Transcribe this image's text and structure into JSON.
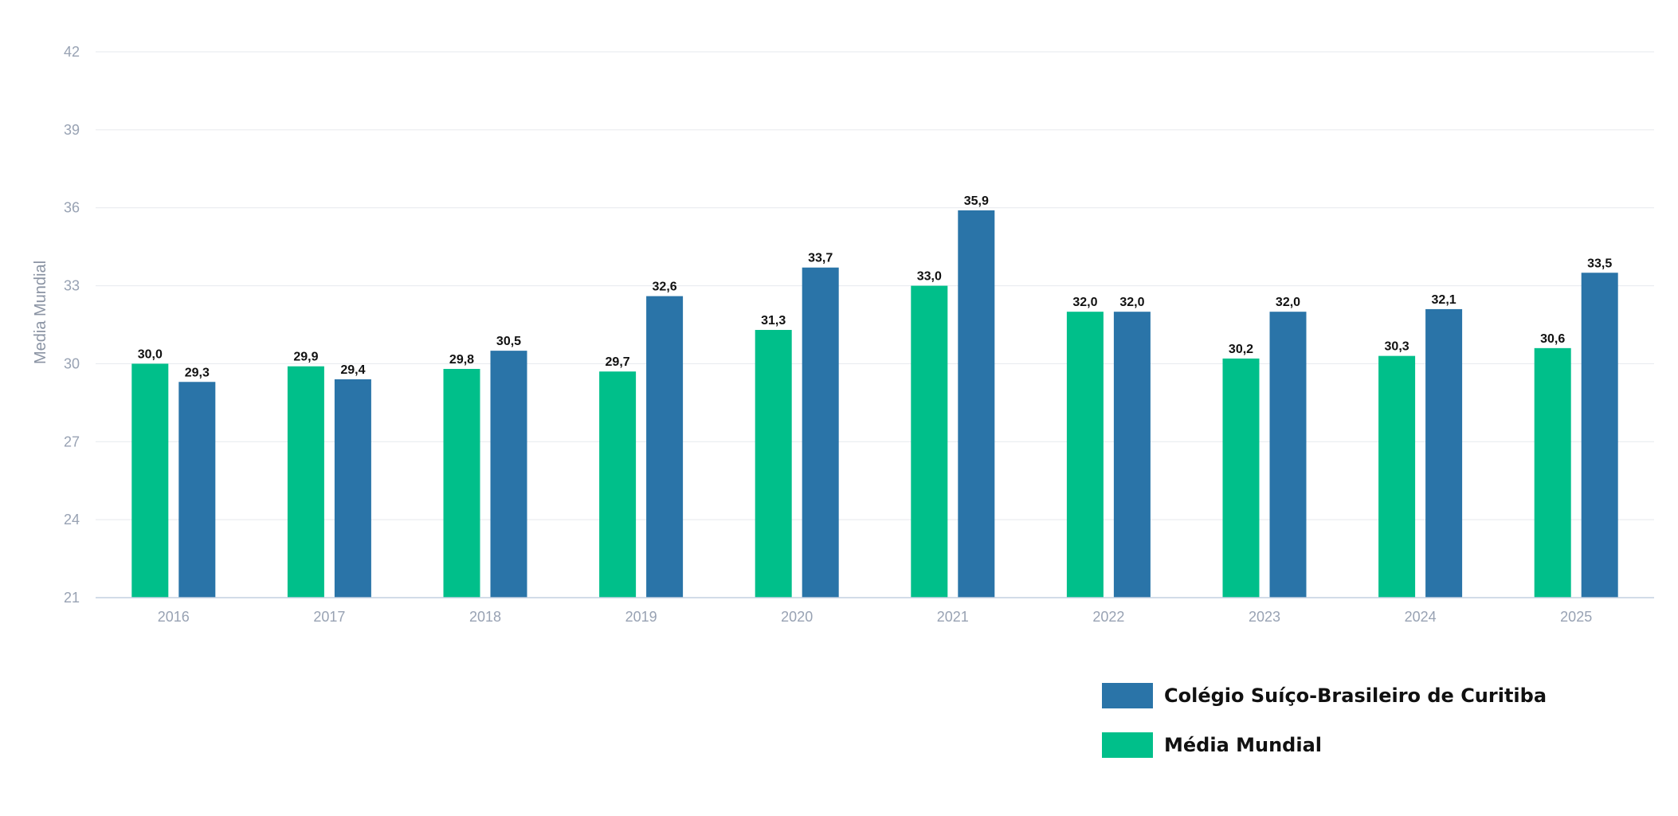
{
  "chart_data": {
    "type": "bar",
    "title": "",
    "xlabel": "",
    "ylabel": "Media Mundial",
    "ylim": [
      21,
      42
    ],
    "yticks": [
      "21",
      "24",
      "27",
      "30",
      "33",
      "36",
      "39",
      "42"
    ],
    "grid": true,
    "legend_position": "bottom-right",
    "categories": [
      "2016",
      "2017",
      "2018",
      "2019",
      "2020",
      "2021",
      "2022",
      "2023",
      "2024",
      "2025"
    ],
    "series": [
      {
        "name": "Média Mundial",
        "color": "#00bf8a",
        "values": [
          30.0,
          29.9,
          29.8,
          29.7,
          31.3,
          33.0,
          32.0,
          30.2,
          30.3,
          30.6
        ],
        "labels": [
          "30,0",
          "29,9",
          "29,8",
          "29,7",
          "31,3",
          "33,0",
          "32,0",
          "30,2",
          "30,3",
          "30,6"
        ]
      },
      {
        "name": "Colégio Suíço-Brasileiro de Curitiba",
        "color": "#2a74a8",
        "values": [
          29.3,
          29.4,
          30.5,
          32.6,
          33.7,
          35.9,
          32.0,
          32.0,
          32.1,
          33.5
        ],
        "labels": [
          "29,3",
          "29,4",
          "30,5",
          "32,6",
          "33,7",
          "35,9",
          "32,0",
          "32,0",
          "32,1",
          "33,5"
        ]
      }
    ]
  },
  "legend": {
    "items": [
      {
        "label": "Colégio Suíço-Brasileiro de Curitiba",
        "color": "#2a74a8"
      },
      {
        "label": "Média Mundial",
        "color": "#00bf8a"
      }
    ]
  },
  "colors": {
    "grid": "#e6e9ee",
    "axis": "#c4d0e0",
    "tick_text": "#98a2b3"
  }
}
